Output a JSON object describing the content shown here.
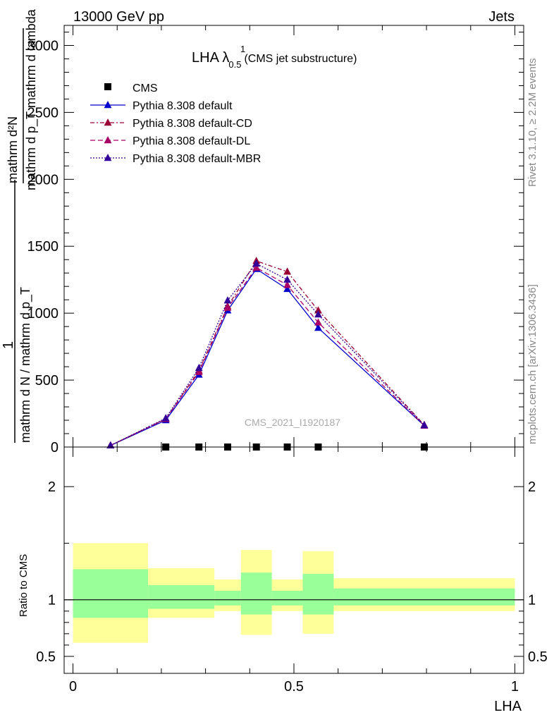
{
  "header": {
    "left": "13000 GeV pp",
    "right": "Jets"
  },
  "side": {
    "rivet": "Rivet 3.1.10, ≥ 2.2M events",
    "mcplots": "mcplots.cern.ch [arXiv:1306.3436]"
  },
  "plot_title": {
    "main": "LHA λ",
    "sup": "1",
    "sub": "0.5",
    "suffix": "(CMS jet substructure)"
  },
  "watermark": "CMS_2021_I1920187",
  "ylabel": {
    "numerator": "mathrm d²N",
    "denominator": "mathrm d p_T mathrm d lambda",
    "prefix": "1",
    "prefix_den": "mathrm d N / mathrm d p_T"
  },
  "ratio_ylabel": "Ratio to CMS",
  "xlabel": "LHA",
  "legend": [
    {
      "label": "CMS",
      "color": "#000000",
      "marker": "square",
      "dash": ""
    },
    {
      "label": "Pythia 8.308 default",
      "color": "#0000cc",
      "marker": "triangle",
      "dash": ""
    },
    {
      "label": "Pythia 8.308 default-CD",
      "color": "#990033",
      "marker": "triangle",
      "dash": "6,3,2,3"
    },
    {
      "label": "Pythia 8.308 default-DL",
      "color": "#aa0066",
      "marker": "triangle",
      "dash": "7,4"
    },
    {
      "label": "Pythia 8.308 default-MBR",
      "color": "#330099",
      "marker": "triangle",
      "dash": "2,2"
    }
  ],
  "chart_data": {
    "type": "line",
    "x": [
      0.085,
      0.21,
      0.285,
      0.35,
      0.415,
      0.485,
      0.555,
      0.795
    ],
    "ylim": [
      0,
      3150
    ],
    "yticks": [
      0,
      500,
      1000,
      1500,
      2000,
      2500,
      3000
    ],
    "yticklabels": [
      "0",
      "500",
      "1000",
      "1500",
      "2000",
      "2500",
      "3000"
    ],
    "xlim": [
      -0.02,
      1.02
    ],
    "xticks": [
      0,
      0.5,
      1
    ],
    "xticklabels": [
      "0",
      "0.5",
      "1"
    ],
    "cms": {
      "name": "CMS",
      "x": [
        0.21,
        0.285,
        0.35,
        0.415,
        0.485,
        0.555,
        0.795
      ],
      "values": [
        0,
        0,
        0,
        0,
        0,
        0,
        0
      ]
    },
    "series": [
      {
        "name": "Pythia 8.308 default",
        "values": [
          12,
          200,
          540,
          1020,
          1330,
          1180,
          890,
          160
        ]
      },
      {
        "name": "Pythia 8.308 default-CD",
        "values": [
          12,
          210,
          570,
          1050,
          1390,
          1310,
          1020,
          165
        ]
      },
      {
        "name": "Pythia 8.308 default-DL",
        "values": [
          12,
          210,
          560,
          1040,
          1340,
          1210,
          930,
          160
        ]
      },
      {
        "name": "Pythia 8.308 default-MBR",
        "values": [
          12,
          215,
          590,
          1095,
          1370,
          1250,
          990,
          163
        ]
      }
    ],
    "ratio": {
      "ylim": [
        0.35,
        2.35
      ],
      "yticks": [
        0.5,
        1,
        2
      ],
      "yticklabels": [
        "0.5",
        "1",
        "2"
      ],
      "bands": [
        {
          "x0": 0.0,
          "x1": 0.17,
          "inner": [
            0.84,
            1.27
          ],
          "outer": [
            0.62,
            1.5
          ]
        },
        {
          "x0": 0.17,
          "x1": 0.32,
          "inner": [
            0.92,
            1.13
          ],
          "outer": [
            0.84,
            1.28
          ]
        },
        {
          "x0": 0.32,
          "x1": 0.38,
          "inner": [
            0.95,
            1.08
          ],
          "outer": [
            0.9,
            1.18
          ]
        },
        {
          "x0": 0.38,
          "x1": 0.45,
          "inner": [
            0.87,
            1.24
          ],
          "outer": [
            0.69,
            1.44
          ]
        },
        {
          "x0": 0.45,
          "x1": 0.52,
          "inner": [
            0.95,
            1.08
          ],
          "outer": [
            0.9,
            1.18
          ]
        },
        {
          "x0": 0.52,
          "x1": 0.59,
          "inner": [
            0.87,
            1.23
          ],
          "outer": [
            0.7,
            1.43
          ]
        },
        {
          "x0": 0.59,
          "x1": 1.0,
          "inner": [
            0.95,
            1.1
          ],
          "outer": [
            0.9,
            1.19
          ]
        }
      ]
    }
  }
}
